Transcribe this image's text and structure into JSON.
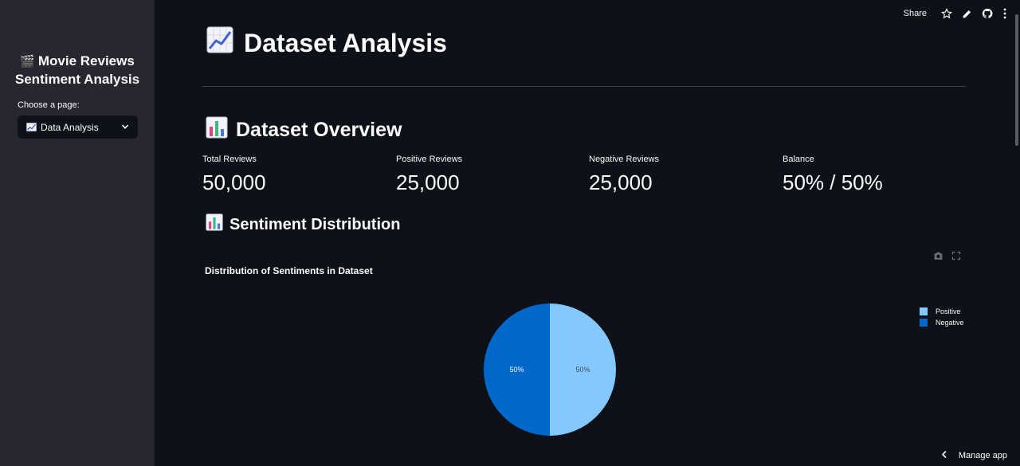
{
  "sidebar": {
    "title": "Movie Reviews Sentiment Analysis",
    "title_emoji": "🎬",
    "select_label": "Choose a page:",
    "selected_page": "Data Analysis",
    "selected_icon": "chart-increasing-icon"
  },
  "toolbar": {
    "share_label": "Share",
    "icons": [
      "star-icon",
      "edit-icon",
      "github-icon",
      "more-vert-icon"
    ]
  },
  "main": {
    "title": "Dataset Analysis",
    "title_icon": "chart-increasing-icon",
    "overview_heading": "Dataset Overview",
    "overview_icon": "bar-chart-icon",
    "metrics": [
      {
        "label": "Total Reviews",
        "value": "50,000"
      },
      {
        "label": "Positive Reviews",
        "value": "25,000"
      },
      {
        "label": "Negative Reviews",
        "value": "25,000"
      },
      {
        "label": "Balance",
        "value": "50% / 50%"
      }
    ],
    "distribution_heading": "Sentiment Distribution",
    "distribution_icon": "bar-chart-icon"
  },
  "chart_data": {
    "type": "pie",
    "title": "Distribution of Sentiments in Dataset",
    "series": [
      {
        "name": "Positive",
        "value": 50,
        "label": "50%",
        "color": "#83c9ff"
      },
      {
        "name": "Negative",
        "value": 50,
        "label": "50%",
        "color": "#0068c9"
      }
    ],
    "legend": [
      "Positive",
      "Negative"
    ],
    "legend_position": "top-right"
  },
  "colors": {
    "background": "#0e1117",
    "sidebar": "#262730",
    "positive": "#83c9ff",
    "negative": "#0068c9"
  },
  "footer": {
    "manage_label": "Manage app"
  }
}
